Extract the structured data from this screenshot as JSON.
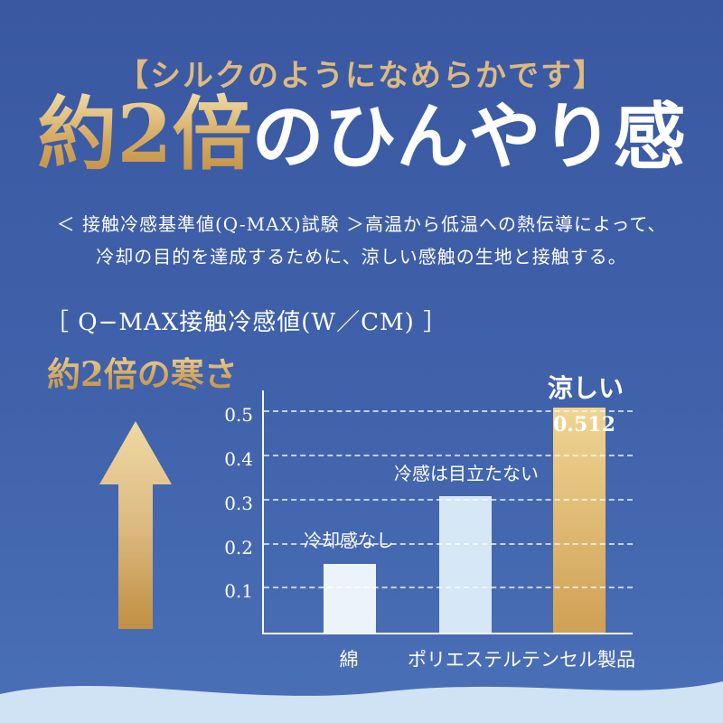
{
  "colors": {
    "background_top": "#3a58a2",
    "background_mid": "#4062ab",
    "background_bottom": "#4a70b7",
    "gold": "#dcba82",
    "gold_light": "#efd9a2",
    "gold_dark": "#c08f42",
    "white": "#ffffff",
    "bar_cotton": "#ecf4fb",
    "bar_polyester": "#d6e7f6",
    "bar_tencel_top": "#f0d593",
    "bar_tencel_bottom": "#cfa055",
    "wave": "#cfe3f5"
  },
  "header": {
    "tagline": "【シルクのようになめらかです】"
  },
  "title": {
    "highlight": "約2倍",
    "rest": "のひんやり感"
  },
  "description": {
    "line1": "＜ 接触冷感基準値(Q-MAX)試験 ＞高温から低温への熱伝導によって、",
    "line2": "冷却の目的を達成するために、涼しい感触の生地と接触する。"
  },
  "section": {
    "heading": "［ Q−MAX接触冷感値(W／CM) ］",
    "arrow_label": "約2倍の寒さ"
  },
  "chart_data": {
    "type": "bar",
    "title": "Q−MAX接触冷感値(W／CM)",
    "categories": [
      "綿",
      "ポリエステル",
      "テンセル製品"
    ],
    "values": [
      0.155,
      0.31,
      0.512
    ],
    "annotations": [
      "冷却感なし",
      "冷感は目立たない",
      "涼しい"
    ],
    "value_labels": [
      "",
      "",
      "0.512"
    ],
    "yticks": [
      0.1,
      0.2,
      0.3,
      0.4,
      0.5
    ],
    "ylim": [
      0,
      0.55
    ],
    "grid": "dashed",
    "legend": "none",
    "xlabel": "",
    "ylabel": ""
  }
}
